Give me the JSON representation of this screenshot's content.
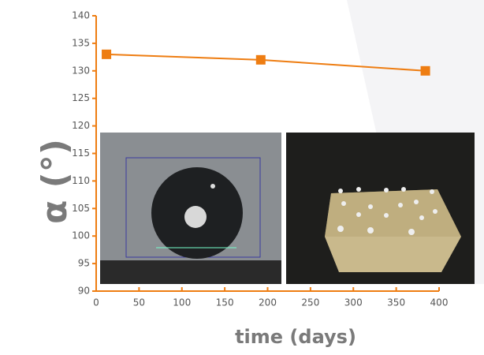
{
  "chart_data": {
    "type": "line",
    "x_label": "time (days)",
    "y_label": "α (°)",
    "xlim": [
      0,
      400
    ],
    "xticks": [
      0,
      50,
      100,
      150,
      200,
      250,
      300,
      350,
      400
    ],
    "ylim": [
      90,
      140
    ],
    "yticks": [
      90,
      95,
      100,
      105,
      110,
      115,
      120,
      125,
      130,
      135,
      140
    ],
    "series": [
      {
        "color": "#ee7d12",
        "x": [
          12,
          192,
          384
        ],
        "values": [
          133,
          132,
          130
        ]
      }
    ]
  }
}
